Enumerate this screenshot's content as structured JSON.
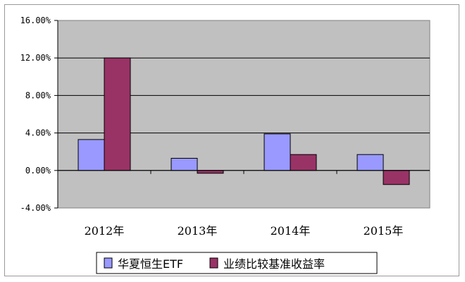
{
  "chart_data": {
    "type": "bar",
    "categories": [
      "2012年",
      "2013年",
      "2014年",
      "2015年"
    ],
    "series": [
      {
        "name": "华夏恒生ETF",
        "values": [
          3.3,
          1.3,
          3.9,
          1.7
        ],
        "color": "#9999ff"
      },
      {
        "name": "业绩比较基准收益率",
        "values": [
          12.0,
          -0.3,
          1.7,
          -1.5
        ],
        "color": "#993366"
      }
    ],
    "yticks": [
      "-4.00%",
      "0.00%",
      "4.00%",
      "8.00%",
      "12.00%",
      "16.00%"
    ],
    "ylim": [
      -4,
      16
    ],
    "grid": true,
    "plot_background": "#c0c0c0",
    "legend_position": "bottom"
  }
}
